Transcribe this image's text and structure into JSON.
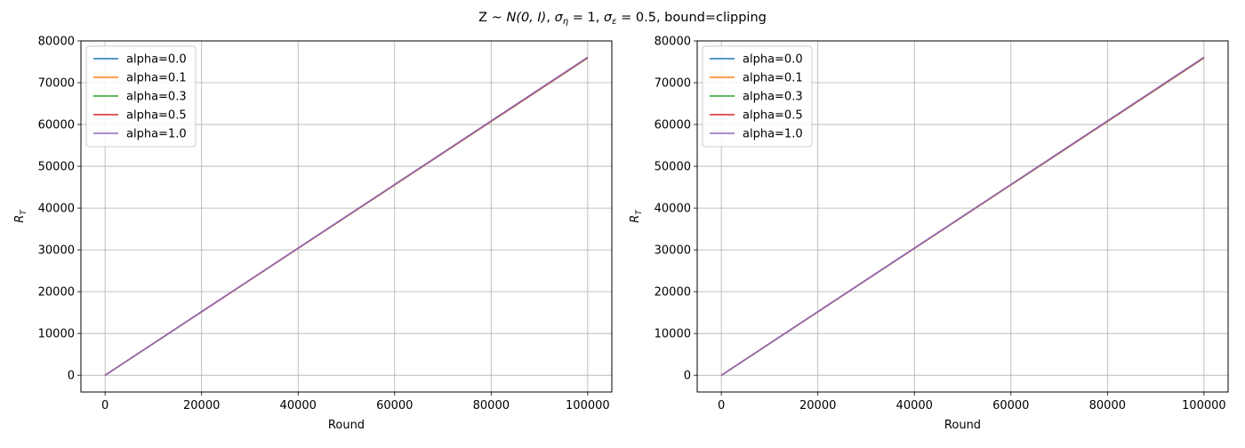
{
  "figure": {
    "suptitle": {
      "prefix": "Z ~ ",
      "dist": "N(0, I)",
      "sep1": ", ",
      "sigma_eta": "σ",
      "eta_sub": "η",
      "eq1": " = 1",
      "sep2": ", ",
      "sigma_eps": "σ",
      "eps_sub": "ε",
      "eq2": " = 0.5, bound=clipping"
    }
  },
  "chart_data": [
    {
      "type": "line",
      "xlabel": "Round",
      "ylabel": "R",
      "ylabel_sub": "T",
      "xlim": [
        -5000,
        105000
      ],
      "ylim": [
        -4000,
        80000
      ],
      "xticks": [
        0,
        20000,
        40000,
        60000,
        80000,
        100000
      ],
      "yticks": [
        0,
        10000,
        20000,
        30000,
        40000,
        50000,
        60000,
        70000,
        80000
      ],
      "grid": true,
      "legend_position": "top-left",
      "x": [
        0,
        100000
      ],
      "series": [
        {
          "name": "alpha=0.0",
          "color": "#1f77b4",
          "values": [
            0,
            76000
          ]
        },
        {
          "name": "alpha=0.1",
          "color": "#ff7f0e",
          "values": [
            0,
            75900
          ]
        },
        {
          "name": "alpha=0.3",
          "color": "#2ca02c",
          "values": [
            0,
            75950
          ]
        },
        {
          "name": "alpha=0.5",
          "color": "#d62728",
          "values": [
            0,
            76000
          ]
        },
        {
          "name": "alpha=1.0",
          "color": "#9467bd",
          "values": [
            0,
            76100
          ]
        }
      ]
    },
    {
      "type": "line",
      "xlabel": "Round",
      "ylabel": "R",
      "ylabel_sub": "T",
      "xlim": [
        -5000,
        105000
      ],
      "ylim": [
        -4000,
        80000
      ],
      "xticks": [
        0,
        20000,
        40000,
        60000,
        80000,
        100000
      ],
      "yticks": [
        0,
        10000,
        20000,
        30000,
        40000,
        50000,
        60000,
        70000,
        80000
      ],
      "grid": true,
      "legend_position": "top-left",
      "x": [
        0,
        100000
      ],
      "series": [
        {
          "name": "alpha=0.0",
          "color": "#1f77b4",
          "values": [
            0,
            76000
          ]
        },
        {
          "name": "alpha=0.1",
          "color": "#ff7f0e",
          "values": [
            0,
            75900
          ]
        },
        {
          "name": "alpha=0.3",
          "color": "#2ca02c",
          "values": [
            0,
            75950
          ]
        },
        {
          "name": "alpha=0.5",
          "color": "#d62728",
          "values": [
            0,
            76000
          ]
        },
        {
          "name": "alpha=1.0",
          "color": "#9467bd",
          "values": [
            0,
            76100
          ]
        }
      ]
    }
  ]
}
